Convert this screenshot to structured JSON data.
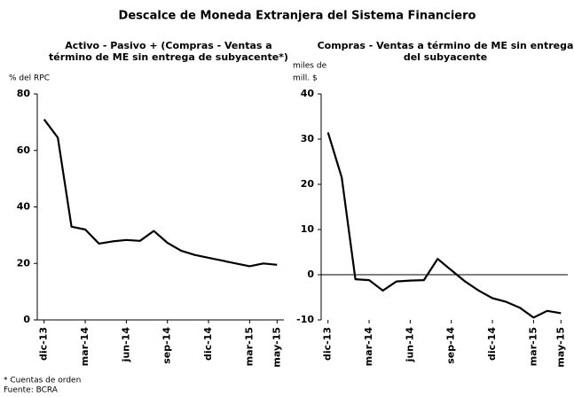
{
  "title": "Descalce de Moneda Extranjera del Sistema Financiero",
  "notes": [
    "* Cuentas de orden",
    "Fuente: BCRA"
  ],
  "chart_data": [
    {
      "type": "line",
      "title": [
        "Activo - Pasivo + (Compras - Ventas a",
        "término de ME sin entrega de subyacente*)"
      ],
      "ylabel": [
        "% del RPC"
      ],
      "categories": [
        "dic-13",
        null,
        null,
        "mar-14",
        null,
        null,
        "jun-14",
        null,
        null,
        "sep-14",
        null,
        null,
        "dic-14",
        null,
        null,
        "mar-15",
        null,
        "may-15"
      ],
      "values": [
        71,
        64.5,
        33,
        32,
        27,
        27.8,
        28.3,
        28,
        31.5,
        27.3,
        24.5,
        23,
        22,
        21,
        20,
        19,
        20,
        19.5
      ],
      "color": "#000000",
      "ylim": [
        0,
        80
      ],
      "yticks": [
        0,
        20,
        40,
        60,
        80
      ]
    },
    {
      "type": "line",
      "title": [
        "Compras - Ventas a término de ME sin entrega",
        "del subyacente"
      ],
      "ylabel": [
        "miles de",
        "mill. $"
      ],
      "categories": [
        "dic-13",
        null,
        null,
        "mar-14",
        null,
        null,
        "jun-14",
        null,
        null,
        "sep-14",
        null,
        null,
        "dic-14",
        null,
        null,
        "mar-15",
        null,
        "may-15"
      ],
      "values": [
        31.5,
        21.5,
        -1,
        -1.2,
        -3.5,
        -1.5,
        -1.3,
        -1.2,
        3.5,
        1,
        -1.5,
        -3.5,
        -5.2,
        -6,
        -7.3,
        -9.5,
        -8,
        -8.5
      ],
      "color": "#000000",
      "ylim": [
        -10,
        40
      ],
      "yticks": [
        -10,
        0,
        10,
        20,
        30,
        40
      ]
    }
  ]
}
